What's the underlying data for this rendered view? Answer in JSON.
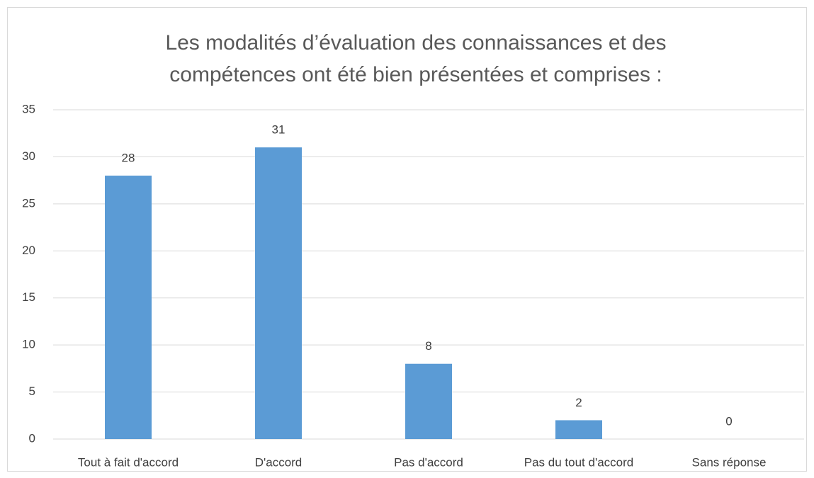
{
  "chart_data": {
    "type": "bar",
    "title": [
      "Les modalités d’évaluation des connaissances et des",
      "compétences ont été bien présentées et comprises :"
    ],
    "categories": [
      "Tout à fait d'accord",
      "D'accord",
      "Pas d'accord",
      "Pas du tout d'accord",
      "Sans réponse"
    ],
    "values": [
      28,
      31,
      8,
      2,
      0
    ],
    "color": "#5b9bd5",
    "ylim": [
      0,
      35
    ],
    "yticks": [
      0,
      5,
      10,
      15,
      20,
      25,
      30,
      35
    ],
    "grid": true
  }
}
